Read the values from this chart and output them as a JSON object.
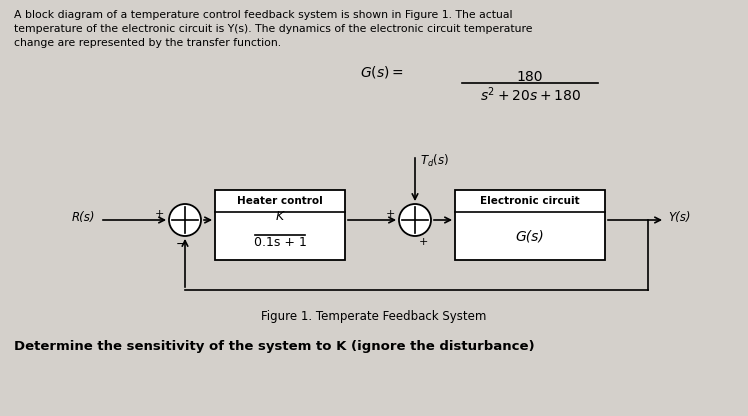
{
  "bg_color": "#d4d0cb",
  "text_color": "#000000",
  "para_line1": "A block diagram of a temperature control feedback system is shown in Figure 1. The actual",
  "para_line2": "temperature of the electronic circuit is Y(s). The dynamics of the electronic circuit temperature",
  "para_line3": "change are represented by the transfer function.",
  "block1_label_top": "Heater control",
  "block1_label_num": "K",
  "block1_label_den": "0.1s + 1",
  "block2_label_top": "Electronic circuit",
  "block2_label_mid": "G(s)",
  "input_label": "R(s)",
  "output_label": "Y(s)",
  "disturbance_label": "T",
  "figure_caption": "Figure 1. Temperate Feedback System",
  "bottom_text": "Determine the sensitivity of the system to K (ignore the disturbance)",
  "formula_num": "180",
  "formula_den": "s² + 20s + 180"
}
